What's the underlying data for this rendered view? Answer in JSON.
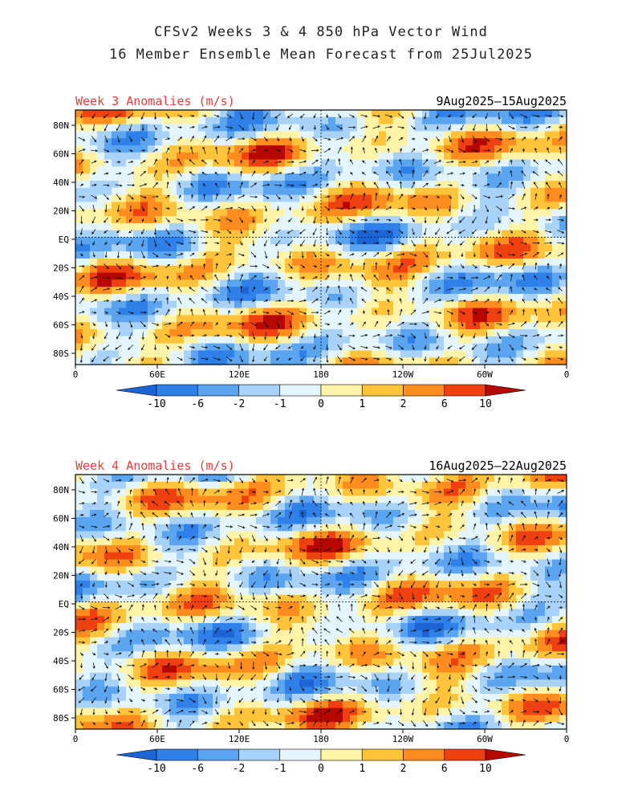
{
  "header": {
    "title_line1": "CFSv2 Weeks 3 & 4 850 hPa Vector Wind",
    "title_line2": "16 Member Ensemble Mean Forecast from 25Jul2025"
  },
  "panels": [
    {
      "label": "Week 3 Anomalies (m/s)",
      "date_range": "9Aug2025–15Aug2025",
      "lat_labels": [
        "80N",
        "60N",
        "40N",
        "20N",
        "EQ",
        "20S",
        "40S",
        "60S",
        "80S"
      ],
      "lon_labels": [
        "0",
        "60E",
        "120E",
        "180",
        "120W",
        "60W",
        "0"
      ],
      "colorbar_labels": [
        "-10",
        "-6",
        "-2",
        "-1",
        "0",
        "1",
        "2",
        "6",
        "10"
      ]
    },
    {
      "label": "Week 4 Anomalies (m/s)",
      "date_range": "16Aug2025–22Aug2025",
      "lat_labels": [
        "80N",
        "60N",
        "40N",
        "20N",
        "EQ",
        "20S",
        "40S",
        "60S",
        "80S"
      ],
      "lon_labels": [
        "0",
        "60E",
        "120E",
        "180",
        "120W",
        "60W",
        "0"
      ],
      "colorbar_labels": [
        "-10",
        "-6",
        "-2",
        "-1",
        "0",
        "1",
        "2",
        "6",
        "10"
      ]
    }
  ],
  "colors": {
    "scale": [
      "#1c64d4",
      "#2f80e8",
      "#5aa4f0",
      "#a8d2f8",
      "#e4f6fc",
      "#fff3a8",
      "#ffc43c",
      "#ff8c1e",
      "#ee4010",
      "#b40800"
    ],
    "label_red": "#e83c3c"
  }
}
